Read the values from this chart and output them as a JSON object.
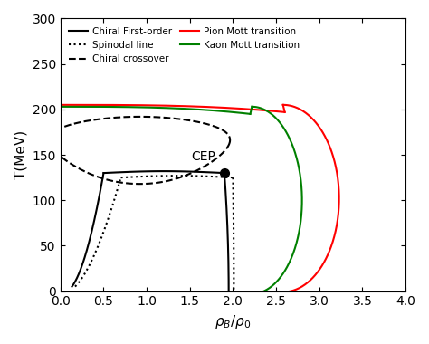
{
  "xlim": [
    0,
    4
  ],
  "ylim": [
    0,
    300
  ],
  "xlabel": "$\\rho_B/\\rho_0$",
  "ylabel": "T(MeV)",
  "CEP": [
    1.9,
    130
  ],
  "CEP_label": "CEP"
}
